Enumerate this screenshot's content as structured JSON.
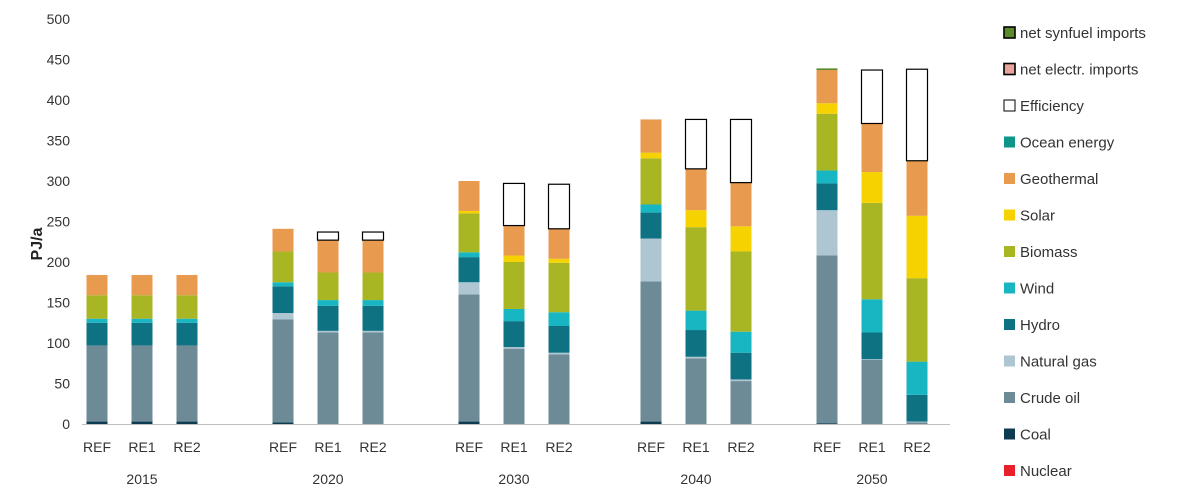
{
  "chart_data": {
    "type": "bar",
    "stacked": true,
    "title": "",
    "xlabel": "",
    "ylabel": "PJ/a",
    "ylim": [
      0,
      500
    ],
    "yticks": [
      0,
      50,
      100,
      150,
      200,
      250,
      300,
      350,
      400,
      450,
      500
    ],
    "grid": false,
    "legend_position": "right",
    "groups": [
      "2015",
      "2020",
      "2030",
      "2040",
      "2050"
    ],
    "scenarios": [
      "REF",
      "RE1",
      "RE2"
    ],
    "categories": [
      "2015 REF",
      "2015 RE1",
      "2015 RE2",
      "2020 REF",
      "2020 RE1",
      "2020 RE2",
      "2030 REF",
      "2030 RE1",
      "2030 RE2",
      "2040 REF",
      "2040 RE1",
      "2040 RE2",
      "2050 REF",
      "2050 RE1",
      "2050 RE2"
    ],
    "series": [
      {
        "name": "Nuclear",
        "color": "#e8202a",
        "values": [
          0,
          0,
          0,
          0,
          0,
          0,
          0,
          0,
          0,
          0,
          0,
          0,
          0,
          0,
          0
        ]
      },
      {
        "name": "Coal",
        "color": "#0d3b4f",
        "values": [
          3,
          3,
          3,
          2,
          0,
          0,
          3,
          0,
          0,
          3,
          0,
          0,
          1,
          0,
          0
        ]
      },
      {
        "name": "Crude oil",
        "color": "#6d8a97",
        "values": [
          94,
          94,
          94,
          127,
          113,
          113,
          157,
          93,
          86,
          173,
          81,
          53,
          207,
          79,
          2
        ]
      },
      {
        "name": "Natural gas",
        "color": "#adc6d2",
        "values": [
          0,
          0,
          0,
          8,
          2,
          2,
          15,
          2,
          2,
          53,
          2,
          2,
          56,
          1,
          1
        ]
      },
      {
        "name": "Hydro",
        "color": "#0e7282",
        "values": [
          28,
          28,
          28,
          33,
          31,
          31,
          31,
          32,
          33,
          32,
          33,
          33,
          33,
          33,
          33
        ]
      },
      {
        "name": "Wind",
        "color": "#17b6c2",
        "values": [
          5,
          5,
          5,
          5,
          7,
          7,
          6,
          15,
          17,
          10,
          24,
          26,
          16,
          41,
          41
        ]
      },
      {
        "name": "Biomass",
        "color": "#a8b624",
        "values": [
          29,
          29,
          29,
          38,
          34,
          34,
          48,
          58,
          61,
          57,
          103,
          99,
          70,
          119,
          103
        ]
      },
      {
        "name": "Solar",
        "color": "#f6d300",
        "values": [
          0,
          0,
          0,
          0,
          0,
          0,
          3,
          8,
          5,
          7,
          21,
          31,
          13,
          38,
          77
        ]
      },
      {
        "name": "Geothermal",
        "color": "#e89a4e",
        "values": [
          25,
          25,
          25,
          28,
          40,
          40,
          37,
          37,
          37,
          41,
          51,
          54,
          41,
          60,
          68
        ]
      },
      {
        "name": "Ocean energy",
        "color": "#0e9488",
        "values": [
          0,
          0,
          0,
          0,
          0,
          0,
          0,
          0,
          0,
          0,
          0,
          0,
          0,
          0,
          0
        ]
      },
      {
        "name": "Efficiency",
        "color": "#ffffff",
        "outline": "#000000",
        "values": [
          0,
          0,
          0,
          0,
          10,
          10,
          0,
          52,
          55,
          0,
          61,
          78,
          0,
          66,
          113
        ]
      },
      {
        "name": "net electr. imports",
        "color": "#e8a49a",
        "values": [
          0,
          0,
          0,
          0,
          0,
          0,
          0,
          0,
          0,
          0,
          0,
          0,
          0,
          0,
          0
        ]
      },
      {
        "name": "net synfuel imports",
        "color": "#5b8a2a",
        "values": [
          0,
          0,
          0,
          0,
          0,
          0,
          0,
          0,
          0,
          0,
          0,
          0,
          2,
          0,
          0
        ]
      }
    ]
  }
}
